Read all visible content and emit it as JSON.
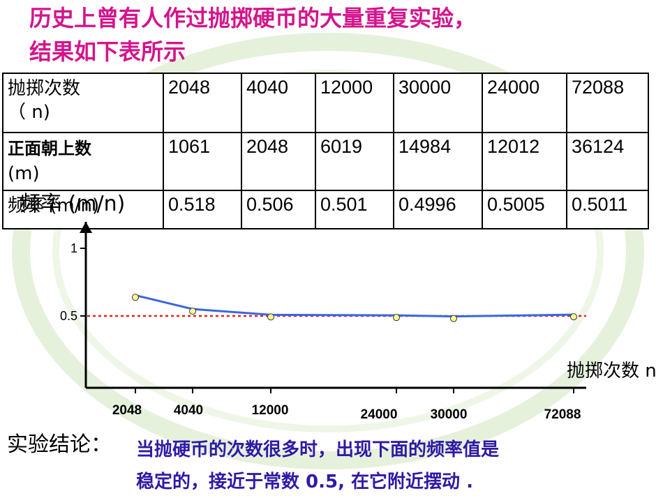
{
  "title": {
    "line1": "历史上曾有人作过抛掷硬币的大量重复实验，",
    "line2": "结果如下表所示"
  },
  "table": {
    "headers": {
      "trials": [
        "抛掷次数",
        "（ n)"
      ],
      "heads": [
        "正面朝上数",
        "(m)"
      ],
      "freq": [
        "频率 (m/n)"
      ]
    },
    "trials": [
      "2048",
      "4040",
      "12000",
      "30000",
      "24000",
      "72088"
    ],
    "heads": [
      "1061",
      "2048",
      "6019",
      "14984",
      "12012",
      "36124"
    ],
    "freq": [
      "0.518",
      "0.506",
      "0.501",
      "0.4996",
      "0.5005",
      "0.5011"
    ]
  },
  "chart_data": {
    "type": "line",
    "ylabel": "频率 (m/n)",
    "xlabel": "抛掷次数 n",
    "ylim": [
      0,
      1.05
    ],
    "yticks": [
      "1",
      "0.5"
    ],
    "x": [
      "2048",
      "4040",
      "12000",
      "24000",
      "30000",
      "72088"
    ],
    "series": [
      {
        "values": [
          0.518,
          0.506,
          0.501,
          0.5005,
          0.4996,
          0.5011
        ]
      }
    ],
    "reference_line": 0.5,
    "colors": {
      "line": "#3a67e0",
      "reference": "#e02020",
      "marker": "#ffff99"
    }
  },
  "conclusion": {
    "label": "实验结论：",
    "line1": "当抛硬币的次数很多时，出现下面的频率值是",
    "line2": "稳定的，接近于常数 0.5, 在它附近摆动 ."
  }
}
